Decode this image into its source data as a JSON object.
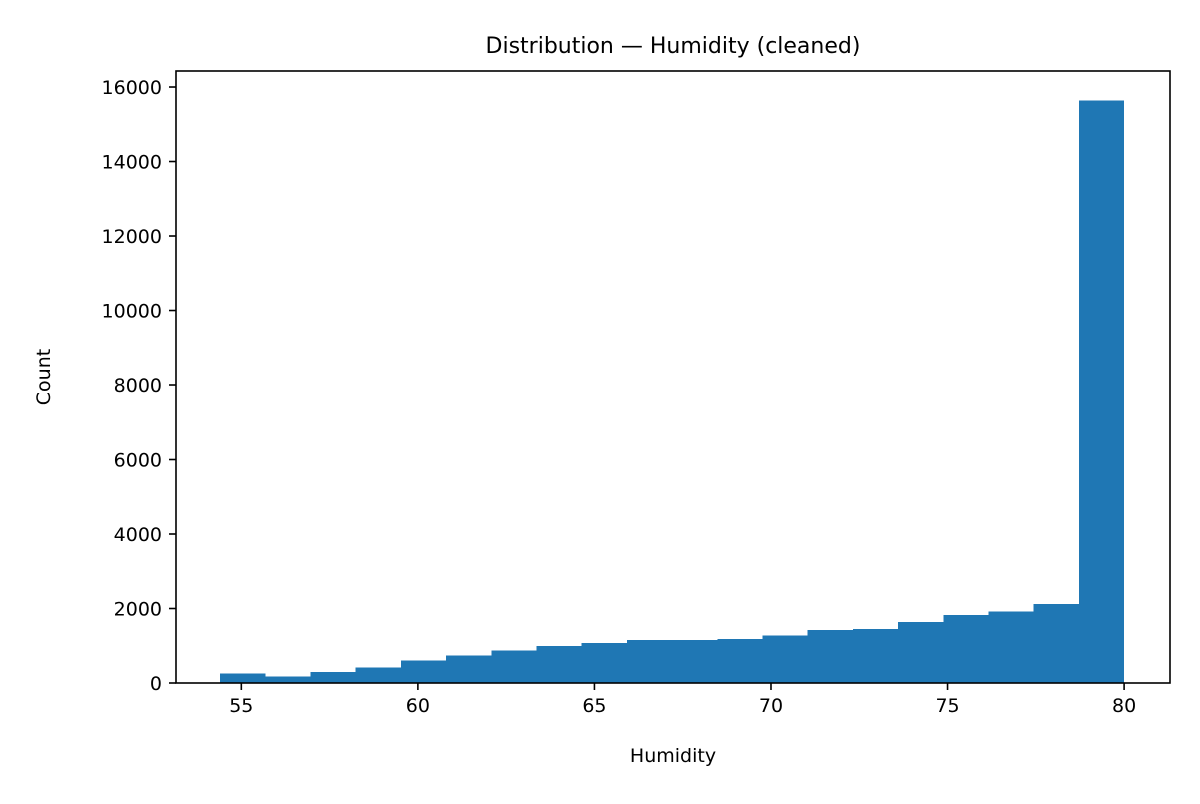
{
  "chart_data": {
    "type": "bar",
    "title": "Distribution — Humidity (cleaned)",
    "xlabel": "Humidity",
    "ylabel": "Count",
    "xlim": [
      53.15,
      81.3
    ],
    "ylim": [
      0,
      16430
    ],
    "xticks": [
      55,
      60,
      65,
      70,
      75,
      80
    ],
    "yticks": [
      0,
      2000,
      4000,
      6000,
      8000,
      10000,
      12000,
      14000,
      16000
    ],
    "bin_edges": [
      54.4,
      55.68,
      56.96,
      58.24,
      59.52,
      60.8,
      62.08,
      63.36,
      64.64,
      65.92,
      67.2,
      68.48,
      69.76,
      71.04,
      72.32,
      73.6,
      74.88,
      76.16,
      77.44,
      78.72,
      80.0
    ],
    "values": [
      260,
      180,
      290,
      420,
      600,
      740,
      870,
      990,
      1070,
      1150,
      1150,
      1180,
      1280,
      1420,
      1450,
      1640,
      1830,
      1920,
      2120,
      15640
    ],
    "bar_color": "#1f77b4",
    "grid": false,
    "legend": "none"
  }
}
